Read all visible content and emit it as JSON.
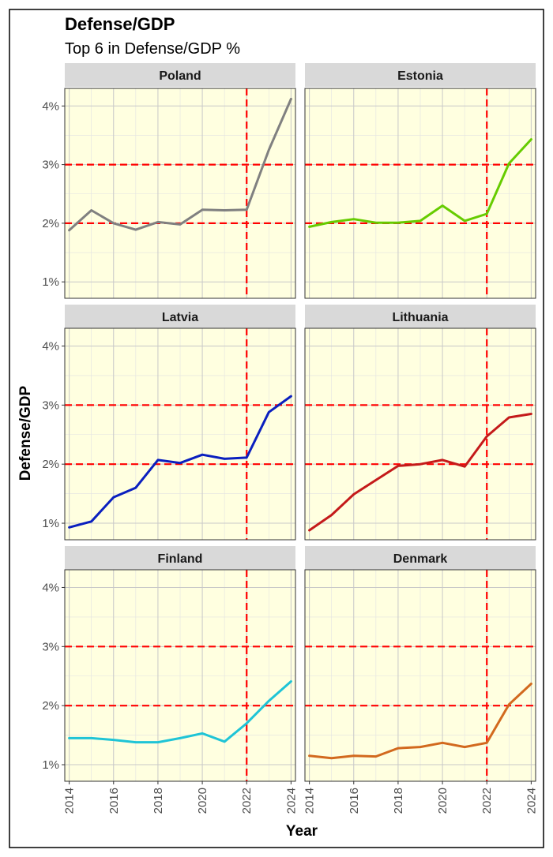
{
  "chart_data": {
    "type": "line",
    "title": "Defense/GDP",
    "subtitle": "Top 6 in Defense/GDP %",
    "xlabel": "Year",
    "ylabel": "Defense/GDP",
    "x": [
      2014,
      2015,
      2016,
      2017,
      2018,
      2019,
      2020,
      2021,
      2022,
      2023,
      2024
    ],
    "x_ticks": [
      2014,
      2016,
      2018,
      2020,
      2022,
      2024
    ],
    "y_ticks": [
      1,
      2,
      3,
      4
    ],
    "y_tick_labels": [
      "1%",
      "2%",
      "3%",
      "4%"
    ],
    "xlim": [
      2013.8,
      2024.2
    ],
    "ylim": [
      0.72,
      4.3
    ],
    "reference_lines": {
      "horizontal": [
        2,
        3
      ],
      "vertical": [
        2022
      ]
    },
    "grid": true,
    "layout": "facet-grid-3x2",
    "panels": [
      {
        "name": "Poland",
        "color": "#808080",
        "values": [
          1.88,
          2.22,
          2.0,
          1.89,
          2.02,
          1.98,
          2.23,
          2.22,
          2.23,
          3.25,
          4.12
        ]
      },
      {
        "name": "Estonia",
        "color": "#66cc00",
        "values": [
          1.94,
          2.02,
          2.07,
          2.01,
          2.01,
          2.04,
          2.3,
          2.04,
          2.16,
          3.02,
          3.43
        ]
      },
      {
        "name": "Latvia",
        "color": "#0a1fbf",
        "values": [
          0.93,
          1.03,
          1.44,
          1.6,
          2.07,
          2.02,
          2.16,
          2.09,
          2.11,
          2.88,
          3.15
        ]
      },
      {
        "name": "Lithuania",
        "color": "#c41a1a",
        "values": [
          0.88,
          1.14,
          1.49,
          1.73,
          1.97,
          2.0,
          2.07,
          1.96,
          2.47,
          2.79,
          2.85
        ]
      },
      {
        "name": "Finland",
        "color": "#1fc4d6",
        "values": [
          1.45,
          1.45,
          1.42,
          1.38,
          1.38,
          1.45,
          1.53,
          1.39,
          1.7,
          2.08,
          2.41
        ]
      },
      {
        "name": "Denmark",
        "color": "#d2691e",
        "values": [
          1.15,
          1.11,
          1.15,
          1.14,
          1.28,
          1.3,
          1.37,
          1.3,
          1.37,
          2.02,
          2.37
        ]
      }
    ]
  }
}
